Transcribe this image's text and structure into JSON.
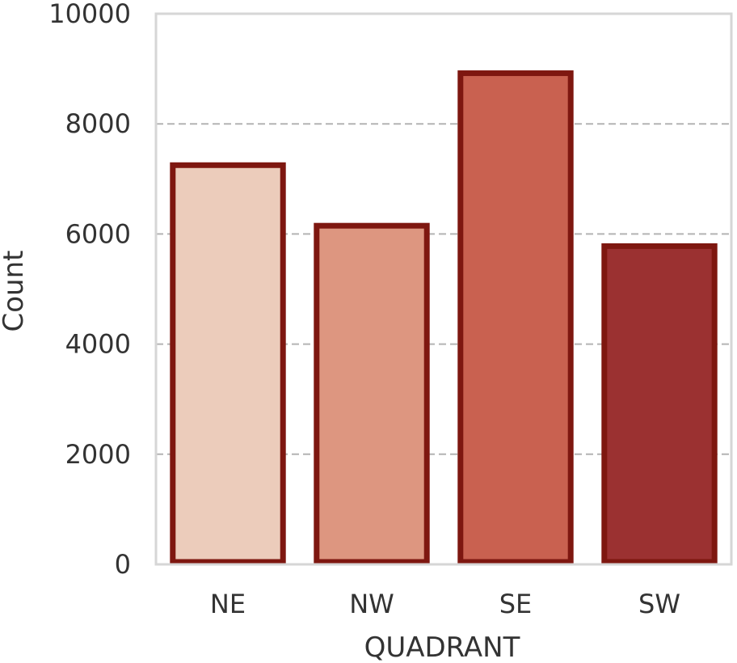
{
  "chart_data": {
    "type": "bar",
    "title": "",
    "xlabel": "QUADRANT",
    "ylabel": "Count",
    "categories": [
      "NE",
      "NW",
      "SE",
      "SW"
    ],
    "values": [
      7250,
      6150,
      8920,
      5780
    ],
    "ylim": [
      0,
      10000
    ],
    "yticks": [
      0,
      2000,
      4000,
      6000,
      8000,
      10000
    ],
    "ytick_labels": [
      "0",
      "2000",
      "4000",
      "6000",
      "8000",
      "10000"
    ],
    "grid": "y-dashed",
    "colors": {
      "bar_fills": [
        "#ecccbb",
        "#dd9680",
        "#c96150",
        "#9b3131"
      ],
      "bar_edge": "#7e1710",
      "grid": "#b3b3b3",
      "frame": "#d6d6d6"
    }
  }
}
